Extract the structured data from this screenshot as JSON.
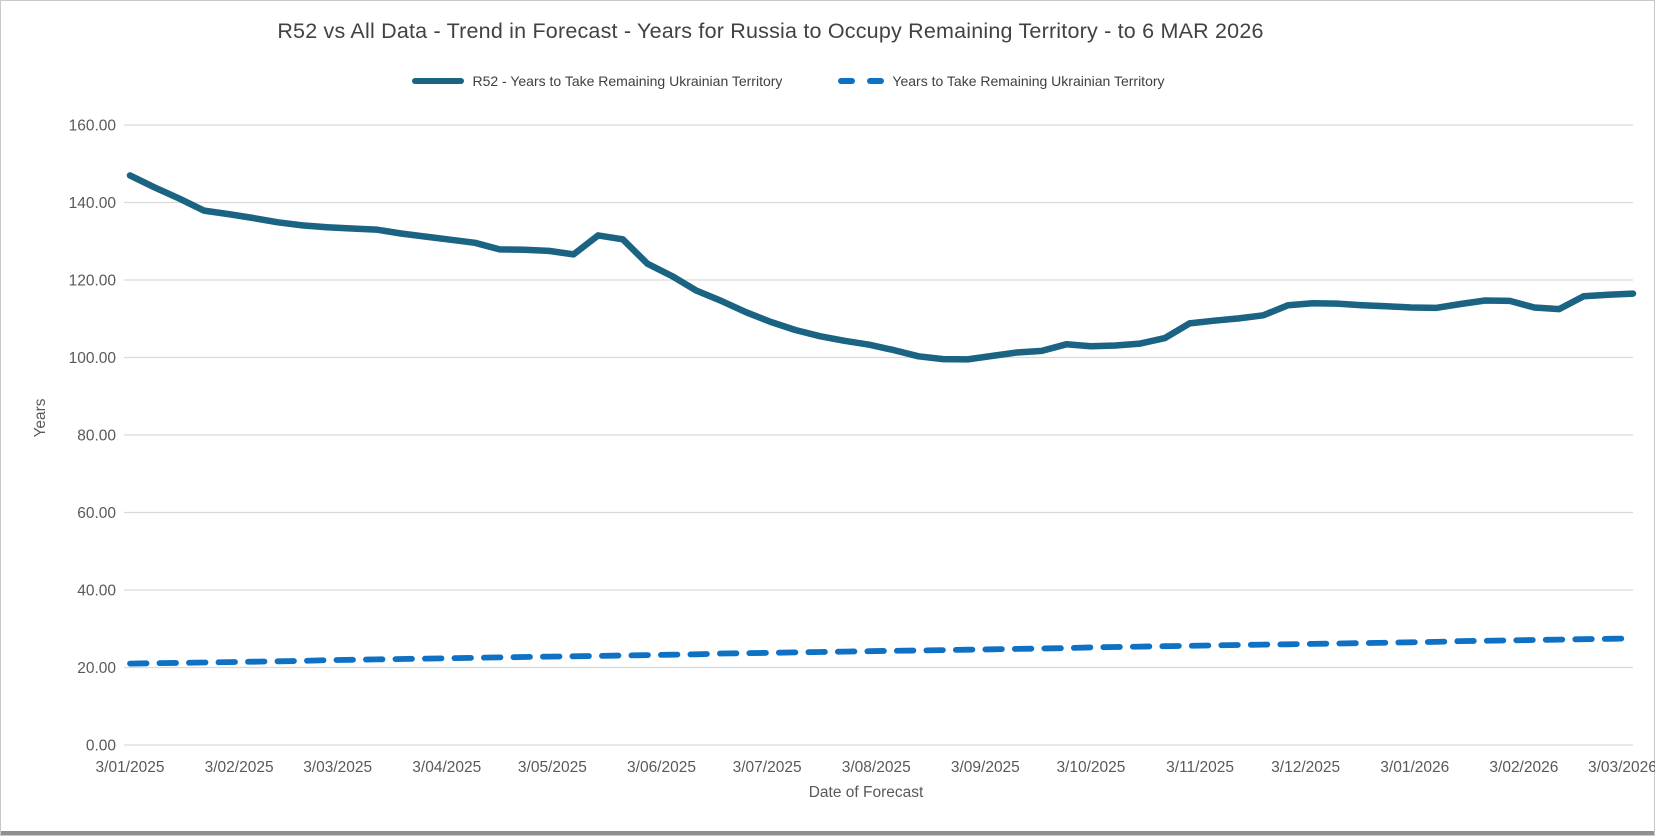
{
  "page": {
    "title": "R52 vs All Data  - Trend in Forecast - Years for Russia to Occupy Remaining Territory - to 6 MAR 2026"
  },
  "legend": {
    "items": [
      {
        "label": "R52 - Years to Take Remaining Ukrainian Territory",
        "color": "#1A6383",
        "style": "solid"
      },
      {
        "label": "Years to Take Remaining Ukrainian Territory",
        "color": "#0E71C3",
        "style": "dashed"
      }
    ]
  },
  "axes": {
    "y_title": "Years",
    "x_title": "Date of Forecast"
  },
  "chart_data": {
    "type": "line",
    "title": "R52 vs All Data  - Trend in Forecast - Years for Russia to Occupy Remaining Territory - to 6 MAR 2026",
    "xlabel": "Date of Forecast",
    "ylabel": "Years",
    "ylim": [
      0,
      160
    ],
    "y_tick_step": 20,
    "y_tick_labels": [
      "0.00",
      "20.00",
      "40.00",
      "60.00",
      "80.00",
      "100.00",
      "120.00",
      "140.00",
      "160.00"
    ],
    "x_tick_labels": [
      "3/01/2025",
      "3/02/2025",
      "3/03/2025",
      "3/04/2025",
      "3/05/2025",
      "3/06/2025",
      "3/07/2025",
      "3/08/2025",
      "3/09/2025",
      "3/10/2025",
      "3/11/2025",
      "3/12/2025",
      "3/01/2026",
      "3/02/2026",
      "3/03/2026"
    ],
    "x_tick_day_offsets": [
      0,
      31,
      59,
      90,
      120,
      151,
      181,
      212,
      243,
      273,
      304,
      334,
      365,
      396,
      424
    ],
    "total_days": 427,
    "point_interval_days": 7,
    "grid": "horizontal",
    "legend_position": "top",
    "series": [
      {
        "name": "R52 - Years to Take Remaining Ukrainian Territory",
        "color": "#1A6383",
        "dash": "solid",
        "values": [
          147.0,
          143.9,
          141.0,
          137.9,
          137.0,
          136.0,
          134.9,
          134.1,
          133.6,
          133.3,
          133.0,
          132.0,
          131.2,
          130.4,
          129.6,
          127.9,
          127.8,
          127.5,
          126.6,
          131.5,
          130.5,
          124.2,
          121.0,
          117.2,
          114.6,
          111.7,
          109.2,
          107.1,
          105.5,
          104.3,
          103.3,
          101.9,
          100.3,
          99.6,
          99.5,
          100.4,
          101.3,
          101.7,
          103.4,
          102.9,
          103.1,
          103.6,
          105.0,
          108.8,
          109.5,
          110.1,
          110.9,
          113.5,
          114.0,
          113.9,
          113.5,
          113.2,
          112.9,
          112.8,
          113.8,
          114.7,
          114.6,
          112.9,
          112.5,
          115.8,
          116.2,
          116.5
        ]
      },
      {
        "name": "Years to Take Remaining Ukrainian Territory",
        "color": "#0E71C3",
        "dash": "dashed",
        "values": [
          21.0,
          21.1,
          21.2,
          21.3,
          21.4,
          21.5,
          21.6,
          21.7,
          21.9,
          22.0,
          22.1,
          22.2,
          22.3,
          22.4,
          22.5,
          22.6,
          22.7,
          22.8,
          22.9,
          23.0,
          23.1,
          23.2,
          23.3,
          23.4,
          23.6,
          23.7,
          23.8,
          23.9,
          24.0,
          24.1,
          24.2,
          24.3,
          24.4,
          24.5,
          24.6,
          24.7,
          24.8,
          24.9,
          25.0,
          25.2,
          25.3,
          25.4,
          25.5,
          25.6,
          25.7,
          25.8,
          25.9,
          26.0,
          26.1,
          26.2,
          26.3,
          26.4,
          26.5,
          26.6,
          26.8,
          26.9,
          27.0,
          27.1,
          27.2,
          27.3,
          27.4,
          27.5
        ]
      }
    ]
  }
}
